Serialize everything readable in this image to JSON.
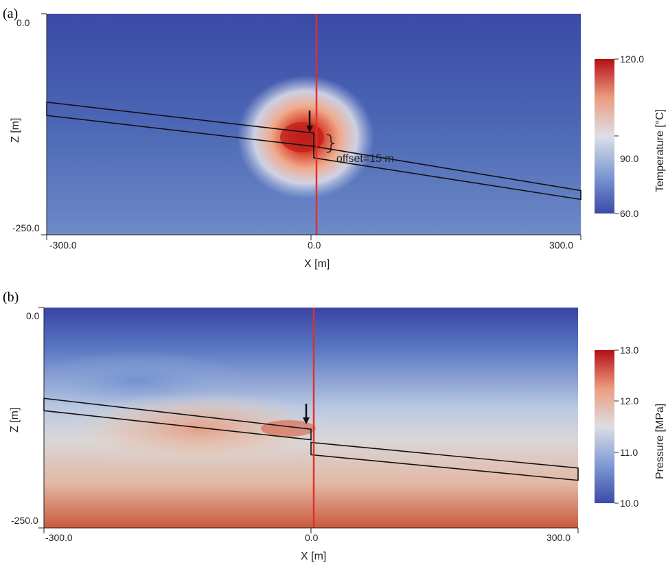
{
  "chart_data": [
    {
      "panel": "(a)",
      "type": "heatmap",
      "field": "temperature",
      "xlabel": "X [m]",
      "ylabel": "Z [m]",
      "xlim": [
        -300,
        300
      ],
      "ylim": [
        -250,
        0
      ],
      "x_ticks": [
        "-300.0",
        "0.0",
        "300.0"
      ],
      "y_ticks": [
        "0.0",
        "-250.0"
      ],
      "colorbar": {
        "label": "Temperature [°C]",
        "range": [
          60,
          120
        ],
        "ticks": [
          "120.0",
          "90.0",
          "60.0"
        ],
        "colors": [
          "#3a4aa8",
          "#d9dde8",
          "#b40f16"
        ]
      },
      "fault": {
        "x": 0,
        "color": "#e0302a"
      },
      "annotation": "offset=15 m",
      "offset_m": 15,
      "injection_marker": {
        "x": 0,
        "z": -128
      },
      "reservoir_layer": {
        "left_block": {
          "x": [
            -300,
            0
          ],
          "top_z": [
            -100,
            -135
          ],
          "bottom_z": [
            -115,
            -150
          ]
        },
        "right_block": {
          "x": [
            0,
            300
          ],
          "top_z": [
            -150,
            -200
          ],
          "bottom_z": [
            -163,
            -210
          ]
        }
      }
    },
    {
      "panel": "(b)",
      "type": "heatmap",
      "field": "pressure",
      "xlabel": "X [m]",
      "ylabel": "Z [m]",
      "xlim": [
        -300,
        300
      ],
      "ylim": [
        -250,
        0
      ],
      "x_ticks": [
        "-300.0",
        "0.0",
        "300.0"
      ],
      "y_ticks": [
        "0.0",
        "-250.0"
      ],
      "colorbar": {
        "label": "Pressure [MPa]",
        "range": [
          10,
          13
        ],
        "ticks": [
          "13.0",
          "12.0",
          "11.0",
          "10.0"
        ],
        "colors": [
          "#3a4aa8",
          "#dcdde3",
          "#b40f16"
        ]
      },
      "fault": {
        "x": 0,
        "color": "#e0302a"
      },
      "injection_marker": {
        "x": 0,
        "z": -118
      },
      "reservoir_layer": {
        "left_block": {
          "x": [
            -300,
            0
          ],
          "top_z": [
            -103,
            -138
          ],
          "bottom_z": [
            -117,
            -150
          ]
        },
        "right_block": {
          "x": [
            0,
            300
          ],
          "top_z": [
            -153,
            -182
          ],
          "bottom_z": [
            -167,
            -196
          ]
        }
      }
    }
  ]
}
